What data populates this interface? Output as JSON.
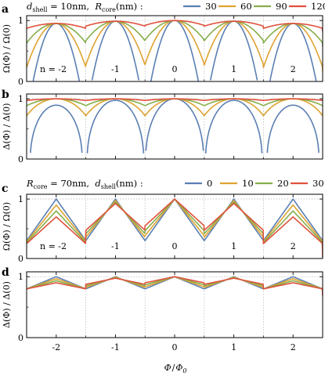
{
  "colors": [
    "#5b7fb3",
    "#dea332",
    "#87ad4b",
    "#e0513d"
  ],
  "charts": {
    "top_legend": {
      "label": "d_shell = 10nm,  R_core(nm) :",
      "label_parts": {
        "var1": "d",
        "sub1": "shell",
        "eq1": " = 10nm,  ",
        "var2": "R",
        "sub2": "core",
        "eq2": "(nm) :"
      },
      "entries": [
        "30",
        "60",
        "90",
        "120"
      ]
    },
    "bottom_legend": {
      "label": "R_core = 70nm,  d_shell(nm) :",
      "label_parts": {
        "var1": "R",
        "sub1": "core",
        "eq1": " = 70nm,  ",
        "var2": "d",
        "sub2": "shell",
        "eq2": "(nm) :"
      },
      "entries": [
        "0",
        "10",
        "20",
        "30"
      ]
    },
    "xlabel": "Φ / Φ₀",
    "xlabel_parts": {
      "num": "Φ",
      "sep": "/",
      "den": "Φ",
      "sub": "0"
    },
    "x_tick_labels": [
      "-2",
      "-1",
      "0",
      "1",
      "2"
    ]
  },
  "chart_data": [
    {
      "panel": "a",
      "type": "line",
      "ylabel": "Ω(Φ) / Ω(0)",
      "xlim": [
        -2.5,
        2.5
      ],
      "ylim": [
        0,
        1.08
      ],
      "y_ticks": [
        "0",
        "1"
      ],
      "x_ticks": [
        -2,
        -1,
        0,
        1,
        2
      ],
      "grid_x": [
        -1.5,
        -0.5,
        0.5,
        1.5
      ],
      "series_names": [
        "30",
        "60",
        "90",
        "120"
      ],
      "series_params": [
        0.97,
        0.45,
        0.2,
        0.05
      ],
      "annotations": [
        "n = -2",
        "-1",
        "0",
        "1",
        "2"
      ]
    },
    {
      "panel": "b",
      "type": "line",
      "ylabel": "Δ(Φ) / Δ(0)",
      "xlim": [
        -2.5,
        2.5
      ],
      "ylim": [
        0,
        1.08
      ],
      "y_ticks": [
        "0",
        "1"
      ],
      "x_ticks": [
        -2,
        -1,
        0,
        1,
        2
      ],
      "grid_x": [
        -1.5,
        -0.5,
        0.5,
        1.5
      ],
      "series_names": [
        "30",
        "60",
        "90",
        "120"
      ],
      "series_params": [
        0.97,
        0.45,
        0.2,
        0.05
      ]
    },
    {
      "panel": "c",
      "type": "line",
      "ylabel": "Ω(Φ) / Ω(0)",
      "xlim": [
        -2.5,
        2.5
      ],
      "ylim": [
        0,
        1.08
      ],
      "y_ticks": [
        "0",
        "1"
      ],
      "x_ticks": [
        -2,
        -1,
        0,
        1,
        2
      ],
      "grid_x": [
        -1.5,
        -0.5,
        0.5,
        1.5
      ],
      "series_names": [
        "0",
        "10",
        "20",
        "30"
      ],
      "series_params": [
        0,
        10,
        20,
        30
      ],
      "annotations": [
        "n = -2",
        "-1",
        "0",
        "1",
        "2"
      ]
    },
    {
      "panel": "d",
      "type": "line",
      "ylabel": "Δ(Φ) / Δ(0)",
      "xlim": [
        -2.5,
        2.5
      ],
      "ylim": [
        0,
        1.08
      ],
      "y_ticks": [
        "0",
        "1"
      ],
      "x_ticks": [
        -2,
        -1,
        0,
        1,
        2
      ],
      "grid_x": [
        -1.5,
        -0.5,
        0.5,
        1.5
      ],
      "series_names": [
        "0",
        "10",
        "20",
        "30"
      ],
      "series_params": [
        0,
        10,
        20,
        30
      ]
    }
  ]
}
